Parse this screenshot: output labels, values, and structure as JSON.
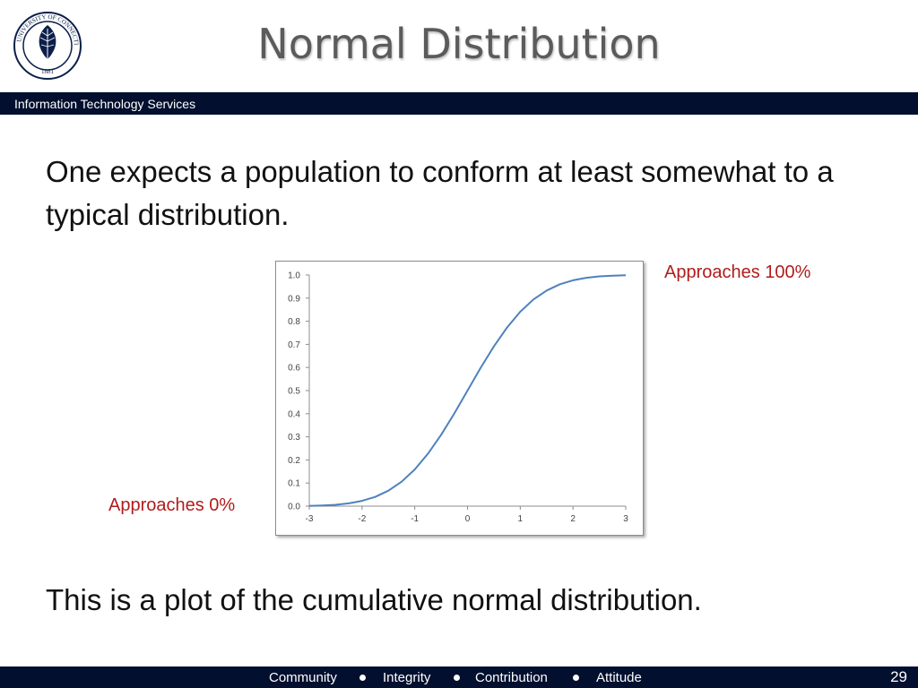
{
  "slide": {
    "title": "Normal Distribution",
    "department": "Information Technology Services",
    "intro_text": "One expects a population to conform at least somewhat to a typical distribution.",
    "caption_text": "This is a plot of the cumulative normal distribution.",
    "annotation_high": "Approaches 100%",
    "annotation_low": "Approaches 0%",
    "page_number": "29"
  },
  "logo": {
    "text": "UNIVERSITY OF CONNECTICUT",
    "year": "1881"
  },
  "footer": {
    "values": [
      "Community",
      "Integrity",
      "Contribution",
      "Attitude"
    ]
  },
  "colors": {
    "navy": "#020f2e",
    "title": "#5b5b5b",
    "annotation": "#b01c1c",
    "curve": "#4f81bd"
  },
  "chart_data": {
    "type": "line",
    "title": "",
    "xlabel": "",
    "ylabel": "",
    "xlim": [
      -3,
      3
    ],
    "ylim": [
      0,
      1
    ],
    "x_ticks": [
      "-3",
      "-2",
      "-1",
      "0",
      "1",
      "2",
      "3"
    ],
    "y_ticks": [
      "0.0",
      "0.1",
      "0.2",
      "0.3",
      "0.4",
      "0.5",
      "0.6",
      "0.7",
      "0.8",
      "0.9",
      "1.0"
    ],
    "grid": false,
    "legend": "none",
    "series": [
      {
        "color": "#4f81bd",
        "x": [
          -3,
          -2.75,
          -2.5,
          -2.25,
          -2,
          -1.75,
          -1.5,
          -1.25,
          -1,
          -0.75,
          -0.5,
          -0.25,
          0,
          0.25,
          0.5,
          0.75,
          1,
          1.25,
          1.5,
          1.75,
          2,
          2.25,
          2.5,
          2.75,
          3
        ],
        "y": [
          0.001,
          0.003,
          0.006,
          0.012,
          0.023,
          0.04,
          0.067,
          0.106,
          0.159,
          0.227,
          0.309,
          0.401,
          0.5,
          0.599,
          0.691,
          0.773,
          0.841,
          0.894,
          0.933,
          0.96,
          0.977,
          0.988,
          0.994,
          0.997,
          0.999
        ]
      }
    ]
  }
}
